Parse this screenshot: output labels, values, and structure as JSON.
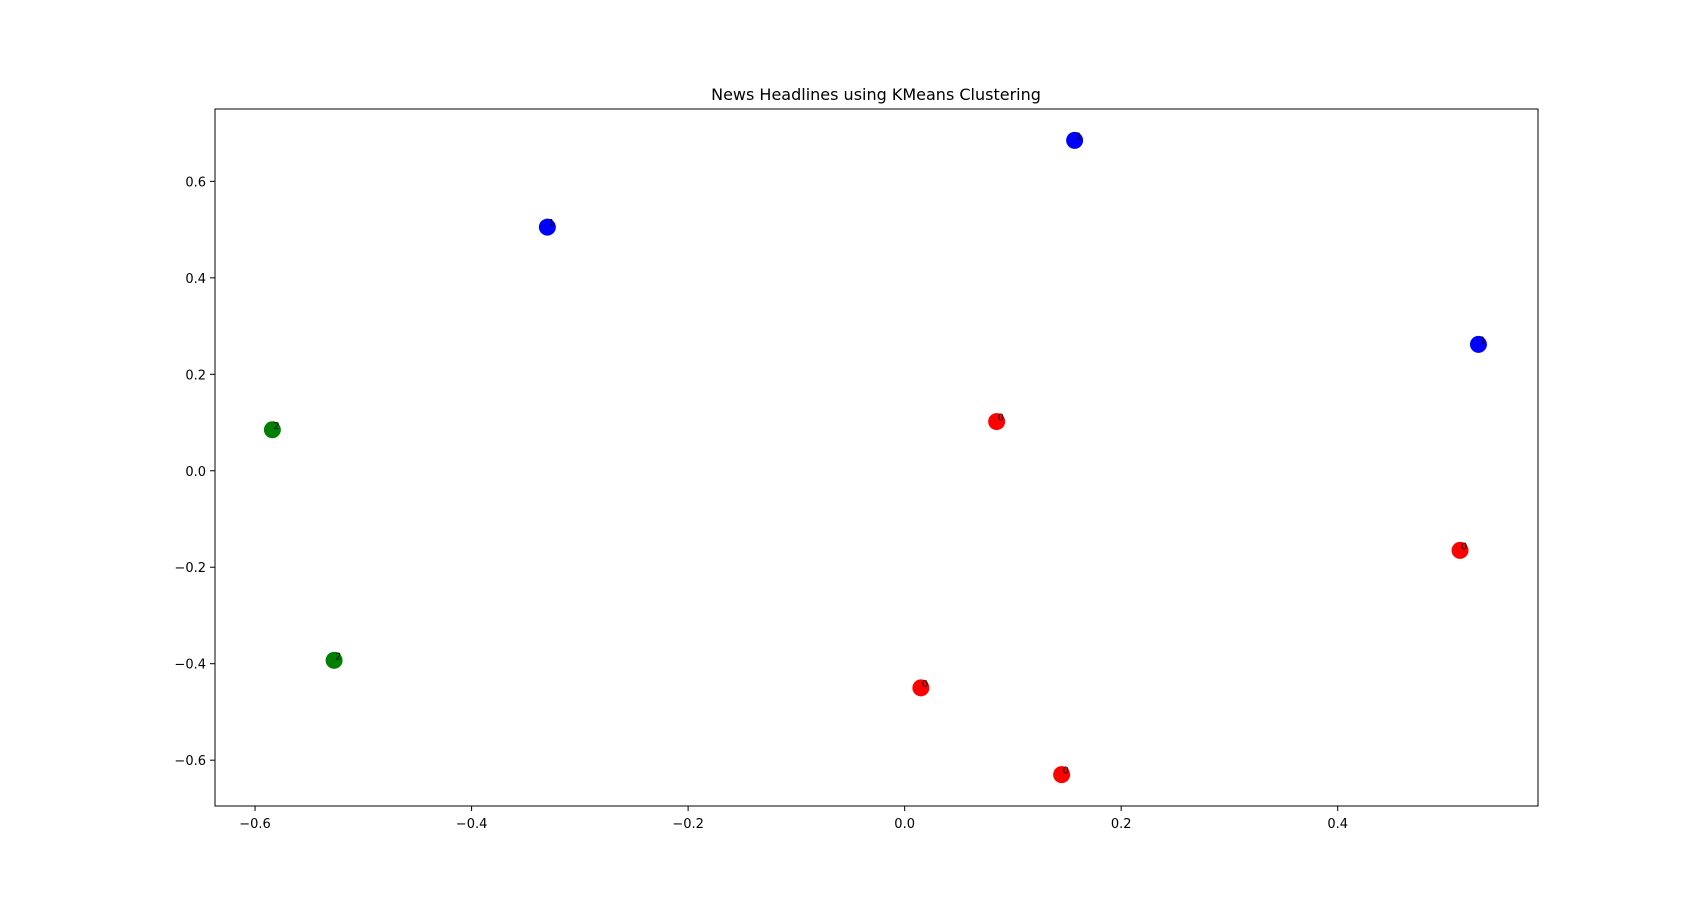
{
  "chart_data": {
    "type": "scatter",
    "title": "News Headlines using KMeans Clustering",
    "xlabel": "",
    "ylabel": "",
    "xlim": [
      -0.637,
      0.585
    ],
    "ylim": [
      -0.695,
      0.75
    ],
    "x_ticks": [
      {
        "value": -0.6,
        "label": "−0.6"
      },
      {
        "value": -0.4,
        "label": "−0.4"
      },
      {
        "value": -0.2,
        "label": "−0.2"
      },
      {
        "value": 0.0,
        "label": "0.0"
      },
      {
        "value": 0.2,
        "label": "0.2"
      },
      {
        "value": 0.4,
        "label": "0.4"
      }
    ],
    "y_ticks": [
      {
        "value": -0.6,
        "label": "−0.6"
      },
      {
        "value": -0.4,
        "label": "−0.4"
      },
      {
        "value": -0.2,
        "label": "−0.2"
      },
      {
        "value": 0.0,
        "label": "0.0"
      },
      {
        "value": 0.2,
        "label": "0.2"
      },
      {
        "value": 0.4,
        "label": "0.4"
      },
      {
        "value": 0.6,
        "label": "0.6"
      }
    ],
    "grid": false,
    "legend": "none",
    "cluster_colors": {
      "0": "#ff0000",
      "1": "#0000ff",
      "2": "#008000"
    },
    "points": [
      {
        "x": -0.33,
        "y": 0.505,
        "cluster": 1,
        "label": "1"
      },
      {
        "x": 0.157,
        "y": 0.685,
        "cluster": 1,
        "label": "1"
      },
      {
        "x": 0.53,
        "y": 0.262,
        "cluster": 1,
        "label": "1"
      },
      {
        "x": -0.584,
        "y": 0.085,
        "cluster": 2,
        "label": "2"
      },
      {
        "x": -0.527,
        "y": -0.393,
        "cluster": 2,
        "label": "2"
      },
      {
        "x": 0.085,
        "y": 0.102,
        "cluster": 0,
        "label": "0"
      },
      {
        "x": 0.513,
        "y": -0.165,
        "cluster": 0,
        "label": "0"
      },
      {
        "x": 0.015,
        "y": -0.45,
        "cluster": 0,
        "label": "0"
      },
      {
        "x": 0.145,
        "y": -0.63,
        "cluster": 0,
        "label": "0"
      }
    ]
  }
}
